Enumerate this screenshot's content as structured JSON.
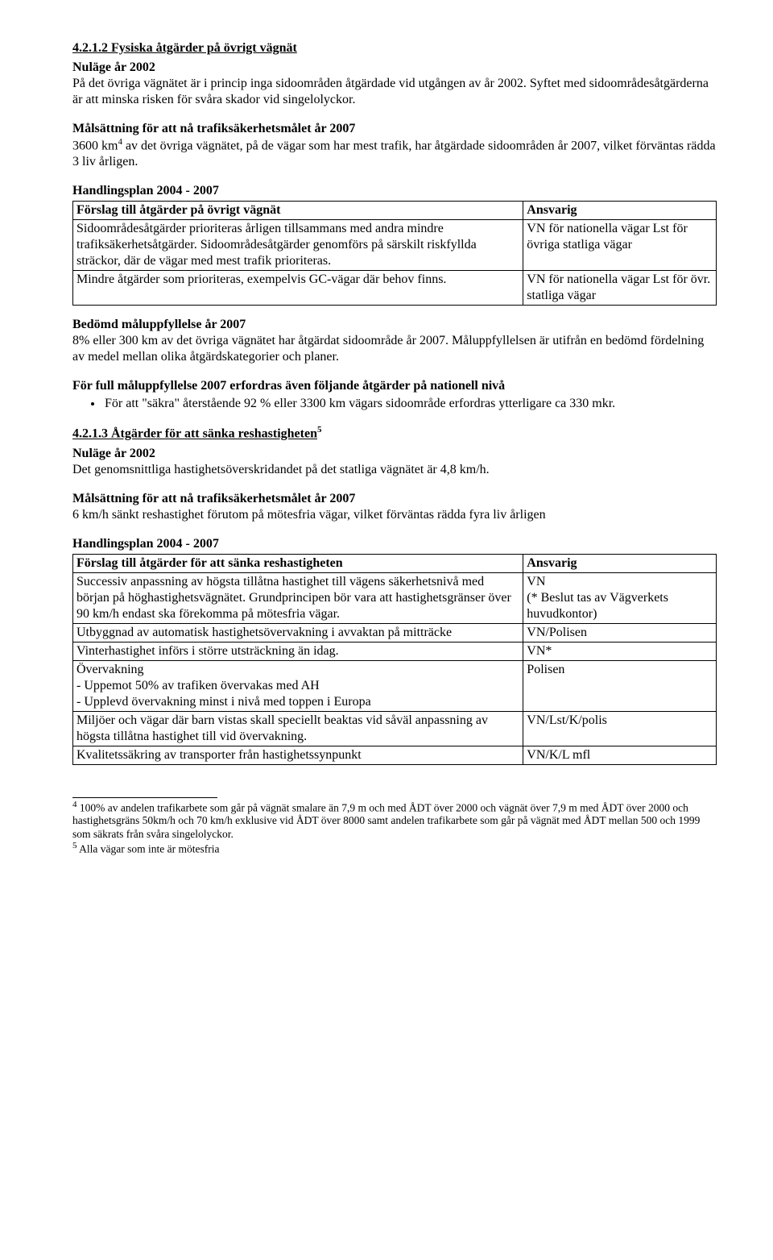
{
  "s1": {
    "heading": "4.2.1.2 Fysiska åtgärder på övrigt vägnät",
    "nulage_label": "Nuläge år 2002",
    "nulage_text": "På det övriga vägnätet är i princip inga sidoområden åtgärdade vid utgången av år 2002. Syftet med sidoområdesåtgärderna är att minska risken för svåra skador vid singelolyckor.",
    "mal_label": "Målsättning för att nå trafiksäkerhetsmålet år 2007",
    "mal_text_a": "3600 km",
    "mal_sup": "4",
    "mal_text_b": " av det övriga vägnätet, på de vägar som har mest trafik, har åtgärdade sidoområden år 2007, vilket förväntas rädda 3 liv årligen.",
    "plan_label": "Handlingsplan 2004 - 2007",
    "table": {
      "header_left": "Förslag till åtgärder på övrigt vägnät",
      "header_right": "Ansvarig",
      "rows": [
        {
          "left": "Sidoområdesåtgärder prioriteras årligen tillsammans med andra mindre trafiksäkerhetsåtgärder. Sidoområdesåtgärder genomförs på särskilt riskfyllda sträckor, där de vägar med mest trafik prioriteras.",
          "right": "VN för nationella vägar Lst för övriga statliga vägar"
        },
        {
          "left": "Mindre åtgärder som prioriteras, exempelvis GC-vägar där behov finns.",
          "right": "VN för nationella vägar Lst för övr. statliga vägar"
        }
      ]
    },
    "bedomd_label": "Bedömd måluppfyllelse år 2007",
    "bedomd_text": "8% eller 300 km av det övriga vägnätet har åtgärdat sidoområde år 2007. Måluppfyllelsen är utifrån en bedömd fördelning av medel mellan olika åtgärdskategorier och planer.",
    "full_label": "För full måluppfyllelse 2007 erfordras även följande åtgärder på nationell nivå",
    "bullet": "För att \"säkra\" återstående 92 % eller 3300 km vägars sidoområde erfordras ytterligare ca 330 mkr."
  },
  "s2": {
    "heading_a": "4.2.1.3 Åtgärder för att sänka reshastigheten",
    "heading_sup": "5",
    "nulage_label": "Nuläge år 2002",
    "nulage_text": "Det genomsnittliga hastighetsöverskridandet på det statliga vägnätet är 4,8 km/h.",
    "mal_label": "Målsättning för att nå trafiksäkerhetsmålet år 2007",
    "mal_text": "6 km/h sänkt reshastighet förutom på mötesfria vägar, vilket förväntas rädda fyra liv årligen",
    "plan_label": "Handlingsplan 2004 - 2007",
    "table": {
      "header_left": "Förslag till åtgärder för att sänka reshastigheten",
      "header_right": "Ansvarig",
      "rows": [
        {
          "left": "Successiv anpassning av högsta tillåtna hastighet till vägens säkerhetsnivå med början på höghastighetsvägnätet. Grundprincipen bör vara att hastighetsgränser över 90 km/h endast ska förekomma på mötesfria vägar.",
          "right": "VN\n(* Beslut tas av Vägverkets huvudkontor)"
        },
        {
          "left": "Utbyggnad av automatisk hastighetsövervakning i avvaktan på mitträcke",
          "right": "VN/Polisen"
        },
        {
          "left": "Vinterhastighet införs i större utsträckning än idag.",
          "right": "VN*"
        },
        {
          "left": "Övervakning\n- Uppemot 50% av trafiken övervakas med AH\n- Upplevd övervakning minst i nivå med toppen i Europa",
          "right": "Polisen"
        },
        {
          "left": "Miljöer och vägar där barn vistas skall speciellt beaktas vid såväl anpassning av högsta tillåtna hastighet till vid övervakning.",
          "right": "VN/Lst/K/polis"
        },
        {
          "left": "Kvalitetssäkring av transporter från hastighetssynpunkt",
          "right": "VN/K/L mfl"
        }
      ]
    }
  },
  "footnotes": {
    "f4_sup": "4",
    "f4_text": " 100% av andelen trafikarbete som går på vägnät smalare än 7,9 m och med ÅDT över 2000 och vägnät över 7,9 m med ÅDT över 2000 och hastighetsgräns 50km/h och 70 km/h exklusive vid ÅDT över 8000 samt andelen trafikarbete som går på vägnät med ÅDT mellan 500 och 1999 som säkrats från svåra singelolyckor.",
    "f5_sup": "5",
    "f5_text": " Alla vägar som inte är mötesfria"
  }
}
